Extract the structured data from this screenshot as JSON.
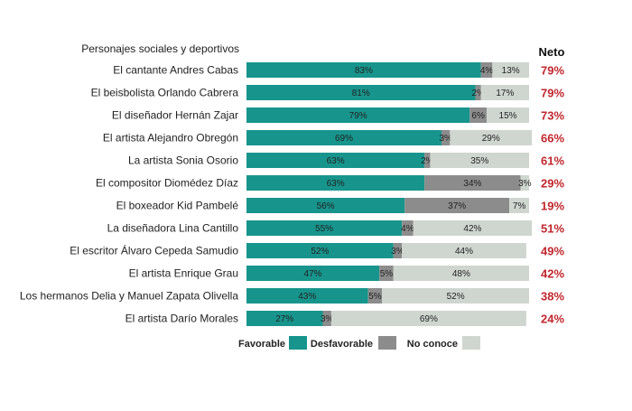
{
  "chart_data": {
    "type": "bar",
    "stacked": true,
    "orientation": "horizontal",
    "header": "Personajes sociales y deportivos",
    "neto_header": "Neto",
    "categories": [
      "El cantante Andres Cabas",
      "El beisbolista Orlando Cabrera",
      "El diseñador Hernán Zajar",
      "El artista Alejandro Obregón",
      "La artista Sonia Osorio",
      "El compositor Diomédez Díaz",
      "El boxeador Kid Pambelé",
      "La diseñadora Lina Cantillo",
      "El escritor Álvaro Cepeda Samudio",
      "El artista Enrique Grau",
      "Los hermanos Delia y Manuel Zapata Olivella",
      "El artista Darío Morales"
    ],
    "series": [
      {
        "name": "Favorable",
        "color": "#17958d",
        "values": [
          83,
          81,
          79,
          69,
          63,
          63,
          56,
          55,
          52,
          47,
          43,
          27
        ],
        "labels": [
          "83%",
          "81%",
          "79%",
          "69%",
          "63%",
          "63%",
          "56%",
          "55%",
          "52%",
          "47%",
          "43%",
          "27%"
        ]
      },
      {
        "name": "Desfavorable",
        "color": "#8c8c8c",
        "values": [
          4,
          2,
          6,
          3,
          2,
          34,
          37,
          4,
          3,
          5,
          5,
          3
        ],
        "labels": [
          "4%",
          "2%",
          "6%",
          "3%",
          "2%",
          "34%",
          "37%",
          "4%",
          "3%",
          "5%",
          "5%",
          "3%"
        ]
      },
      {
        "name": "No conoce",
        "color": "#cfd6d0",
        "values": [
          13,
          17,
          15,
          29,
          35,
          3,
          7,
          42,
          44,
          48,
          52,
          69
        ],
        "labels": [
          "13%",
          "17%",
          "15%",
          "29%",
          "35%",
          "3%",
          "7%",
          "42%",
          "44%",
          "48%",
          "52%",
          "69%"
        ]
      }
    ],
    "neto": [
      "79%",
      "79%",
      "73%",
      "66%",
      "61%",
      "29%",
      "19%",
      "51%",
      "49%",
      "42%",
      "38%",
      "24%"
    ],
    "neto_color": "#c0272d",
    "xlim": [
      0,
      100
    ],
    "legend": "bottom"
  }
}
